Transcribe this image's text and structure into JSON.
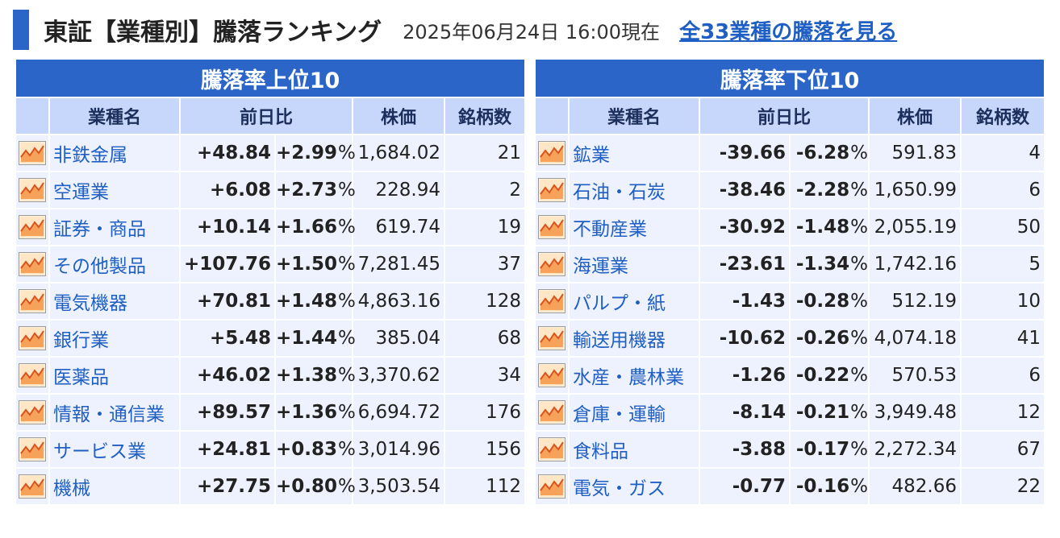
{
  "header": {
    "title": "東証【業種別】騰落ランキング",
    "timestamp": "2025年06月24日 16:00現在",
    "link": "全33業種の騰落を見る"
  },
  "icons": {
    "row_icon": "chart-icon"
  },
  "colors": {
    "accent": "#2b65c8",
    "up": "#e03c31",
    "down": "#2b6fe0",
    "link": "#1f5fc4"
  },
  "columns": {
    "name": "業種名",
    "change": "前日比",
    "price": "株価",
    "count": "銘柄数",
    "pct_sign": "%"
  },
  "top": {
    "caption": "騰落率上位10",
    "rows": [
      {
        "name": "非鉄金属",
        "change": "+48.84",
        "pct": "+2.99",
        "price": "1,684.02",
        "count": "21"
      },
      {
        "name": "空運業",
        "change": "+6.08",
        "pct": "+2.73",
        "price": "228.94",
        "count": "2"
      },
      {
        "name": "証券・商品",
        "change": "+10.14",
        "pct": "+1.66",
        "price": "619.74",
        "count": "19"
      },
      {
        "name": "その他製品",
        "change": "+107.76",
        "pct": "+1.50",
        "price": "7,281.45",
        "count": "37"
      },
      {
        "name": "電気機器",
        "change": "+70.81",
        "pct": "+1.48",
        "price": "4,863.16",
        "count": "128"
      },
      {
        "name": "銀行業",
        "change": "+5.48",
        "pct": "+1.44",
        "price": "385.04",
        "count": "68"
      },
      {
        "name": "医薬品",
        "change": "+46.02",
        "pct": "+1.38",
        "price": "3,370.62",
        "count": "34"
      },
      {
        "name": "情報・通信業",
        "change": "+89.57",
        "pct": "+1.36",
        "price": "6,694.72",
        "count": "176"
      },
      {
        "name": "サービス業",
        "change": "+24.81",
        "pct": "+0.83",
        "price": "3,014.96",
        "count": "156"
      },
      {
        "name": "機械",
        "change": "+27.75",
        "pct": "+0.80",
        "price": "3,503.54",
        "count": "112"
      }
    ]
  },
  "bottom": {
    "caption": "騰落率下位10",
    "rows": [
      {
        "name": "鉱業",
        "change": "-39.66",
        "pct": "-6.28",
        "price": "591.83",
        "count": "4"
      },
      {
        "name": "石油・石炭",
        "change": "-38.46",
        "pct": "-2.28",
        "price": "1,650.99",
        "count": "6"
      },
      {
        "name": "不動産業",
        "change": "-30.92",
        "pct": "-1.48",
        "price": "2,055.19",
        "count": "50"
      },
      {
        "name": "海運業",
        "change": "-23.61",
        "pct": "-1.34",
        "price": "1,742.16",
        "count": "5"
      },
      {
        "name": "パルプ・紙",
        "change": "-1.43",
        "pct": "-0.28",
        "price": "512.19",
        "count": "10"
      },
      {
        "name": "輸送用機器",
        "change": "-10.62",
        "pct": "-0.26",
        "price": "4,074.18",
        "count": "41"
      },
      {
        "name": "水産・農林業",
        "change": "-1.26",
        "pct": "-0.22",
        "price": "570.53",
        "count": "6"
      },
      {
        "name": "倉庫・運輸",
        "change": "-8.14",
        "pct": "-0.21",
        "price": "3,949.48",
        "count": "12"
      },
      {
        "name": "食料品",
        "change": "-3.88",
        "pct": "-0.17",
        "price": "2,272.34",
        "count": "67"
      },
      {
        "name": "電気・ガス",
        "change": "-0.77",
        "pct": "-0.16",
        "price": "482.66",
        "count": "22"
      }
    ]
  }
}
